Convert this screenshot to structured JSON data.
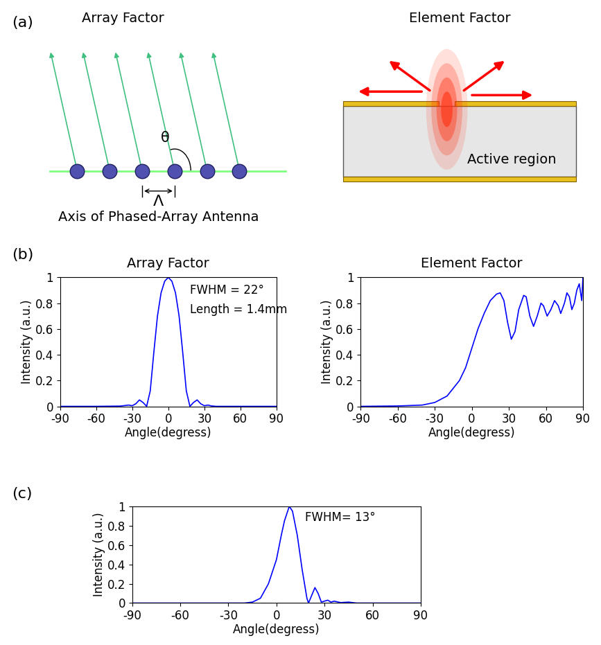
{
  "panel_labels": [
    "(a)",
    "(b)",
    "(c)"
  ],
  "diagram": {
    "array_factor": {
      "title": "Array Factor",
      "angle": "θ",
      "period": "Λ",
      "axis_label": "Axis of Phased-Array Antenna"
    },
    "element_factor": {
      "title": "Element Factor",
      "region_label": "Active region"
    }
  },
  "chart_data": [
    {
      "type": "line",
      "title": "Array Factor",
      "x_label": "Angle(degress)",
      "y_label": "Intensity (a.u.)",
      "annotations": [
        "FWHM = 22°",
        "Length = 1.4mm"
      ],
      "color": "#0000ff",
      "x": [
        -90,
        -60,
        -40,
        -33,
        -30,
        -27,
        -24,
        -21,
        -18,
        -15,
        -12,
        -9,
        -6,
        -3,
        0,
        3,
        6,
        9,
        12,
        15,
        18,
        21,
        24,
        27,
        30,
        33,
        36,
        40,
        60,
        90
      ],
      "values": [
        0,
        0,
        0.002,
        0.01,
        0.005,
        0.02,
        0.05,
        0.03,
        0.0,
        0.12,
        0.42,
        0.7,
        0.88,
        0.97,
        1.0,
        0.97,
        0.88,
        0.7,
        0.42,
        0.12,
        0.0,
        0.03,
        0.05,
        0.02,
        0.005,
        0.01,
        0.003,
        0.0,
        0,
        0
      ],
      "xlim": [
        -90,
        90
      ],
      "xticks": [
        -90,
        -60,
        -30,
        0,
        30,
        60,
        90
      ],
      "ylim": [
        0,
        1
      ],
      "yticks": [
        0,
        0.2,
        0.4,
        0.6,
        0.8,
        1
      ]
    },
    {
      "type": "line",
      "title": "Element Factor",
      "x_label": "Angle(degress)",
      "y_label": "Intensity (a.u.)",
      "color": "#0000ff",
      "x": [
        -90,
        -60,
        -40,
        -30,
        -20,
        -10,
        -5,
        0,
        5,
        10,
        15,
        20,
        23,
        26,
        29,
        32,
        35,
        38,
        42,
        44,
        47,
        50,
        53,
        56,
        58,
        61,
        64,
        67,
        70,
        72,
        75,
        77,
        79,
        81,
        83,
        85,
        87,
        89,
        90
      ],
      "values": [
        0.0,
        0.003,
        0.01,
        0.03,
        0.08,
        0.2,
        0.3,
        0.45,
        0.6,
        0.72,
        0.82,
        0.87,
        0.88,
        0.82,
        0.65,
        0.52,
        0.58,
        0.75,
        0.86,
        0.85,
        0.7,
        0.62,
        0.7,
        0.8,
        0.78,
        0.7,
        0.75,
        0.82,
        0.78,
        0.72,
        0.8,
        0.88,
        0.85,
        0.75,
        0.8,
        0.9,
        0.95,
        0.82,
        1.0
      ],
      "xlim": [
        -90,
        90
      ],
      "xticks": [
        -90,
        -60,
        -30,
        0,
        30,
        60,
        90
      ],
      "ylim": [
        0,
        1
      ],
      "yticks": [
        0,
        0.2,
        0.4,
        0.6,
        0.8,
        1
      ]
    },
    {
      "type": "line",
      "x_label": "Angle(degress)",
      "y_label": "Intensity (a.u.)",
      "annotations": [
        "FWHM= 13°"
      ],
      "color": "#0000ff",
      "x": [
        -90,
        -30,
        -20,
        -15,
        -10,
        -5,
        0,
        3,
        5,
        8,
        10,
        13,
        16,
        19,
        20,
        22,
        24,
        26,
        28,
        30,
        32,
        34,
        36,
        40,
        45,
        50,
        90
      ],
      "values": [
        0,
        0,
        0.0,
        0.01,
        0.05,
        0.2,
        0.45,
        0.7,
        0.85,
        1.0,
        0.95,
        0.7,
        0.35,
        0.05,
        0.0,
        0.08,
        0.16,
        0.1,
        0.01,
        0.02,
        0.03,
        0.01,
        0.02,
        0.005,
        0.01,
        0.0,
        0
      ],
      "xlim": [
        -90,
        90
      ],
      "xticks": [
        -90,
        -60,
        -30,
        0,
        30,
        60,
        90
      ],
      "ylim": [
        0,
        1
      ],
      "yticks": [
        0,
        0.2,
        0.4,
        0.6,
        0.8,
        1
      ]
    }
  ]
}
